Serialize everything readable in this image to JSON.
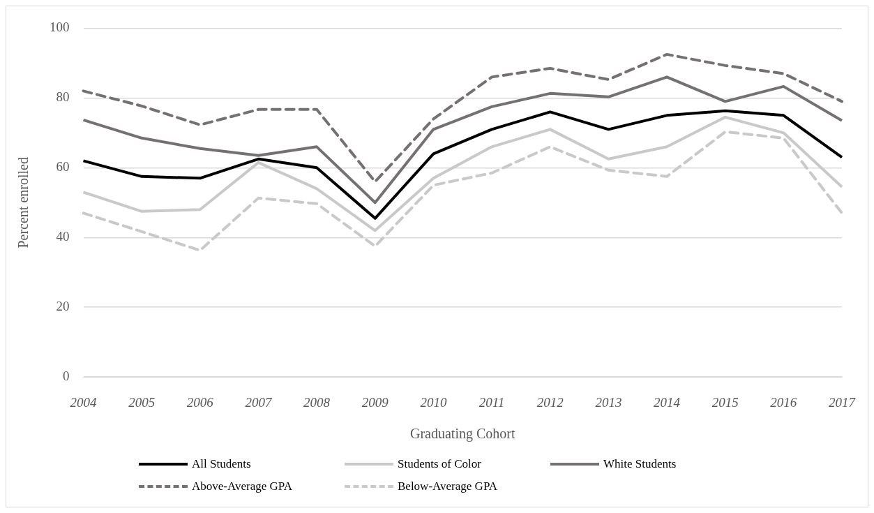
{
  "chart_data": {
    "type": "line",
    "xlabel": "Graduating Cohort",
    "ylabel": "Percent enrolled",
    "categories": [
      "2004",
      "2005",
      "2006",
      "2007",
      "2008",
      "2009",
      "2010",
      "2011",
      "2012",
      "2013",
      "2014",
      "2015",
      "2016",
      "2017"
    ],
    "ylim": [
      0,
      100
    ],
    "yticks": [
      0,
      20,
      40,
      60,
      80,
      100
    ],
    "grid": "y",
    "legend": "bottom",
    "marker": "none",
    "series": [
      {
        "name": "All Students",
        "color": "#000000",
        "line_style": "solid",
        "values": [
          62,
          57.5,
          57,
          62.5,
          60,
          45.5,
          64,
          71,
          76,
          71,
          75,
          76.3,
          75,
          63
        ]
      },
      {
        "name": "Students of Color",
        "color": "#c9c9c9",
        "line_style": "solid",
        "values": [
          53,
          47.5,
          48,
          61.5,
          54,
          42,
          57,
          66,
          71,
          62.5,
          66,
          74.5,
          70,
          54.5
        ]
      },
      {
        "name": "White Students",
        "color": "#767171",
        "line_style": "solid",
        "values": [
          73.7,
          68.5,
          65.5,
          63.5,
          66,
          50,
          71,
          77.5,
          81.3,
          80.3,
          86,
          79,
          83.3,
          73.5
        ]
      },
      {
        "name": "Above-Average GPA",
        "color": "#767171",
        "line_style": "dashed",
        "values": [
          82,
          77.7,
          72.3,
          76.7,
          76.7,
          56,
          74,
          86,
          88.5,
          85.3,
          92.5,
          89.3,
          87,
          79
        ]
      },
      {
        "name": "Below-Average GPA",
        "color": "#c9c9c9",
        "line_style": "dashed",
        "values": [
          47,
          41.7,
          36.3,
          51.3,
          49.7,
          37.5,
          55,
          58.5,
          66,
          59.3,
          57.5,
          70.3,
          68.5,
          47
        ]
      }
    ]
  }
}
